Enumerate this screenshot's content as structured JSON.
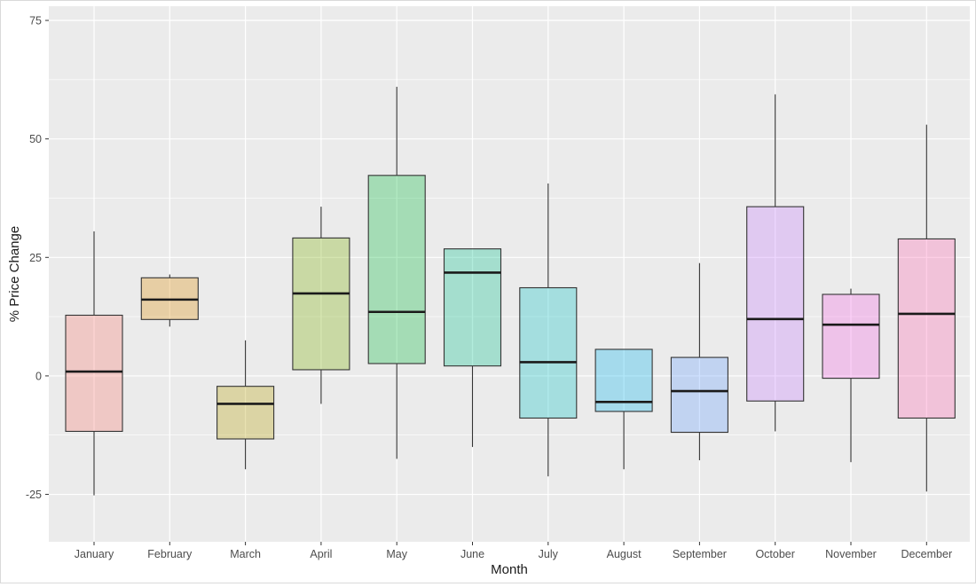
{
  "chart_data": {
    "type": "boxplot",
    "title": "",
    "xlabel": "Month",
    "ylabel": "% Price Change",
    "ylim": [
      -35,
      78
    ],
    "yticks": [
      75,
      50,
      25,
      0,
      -25
    ],
    "grid": true,
    "legend": "none",
    "categories": [
      "January",
      "February",
      "March",
      "April",
      "May",
      "June",
      "July",
      "August",
      "September",
      "October",
      "November",
      "December"
    ],
    "boxes": [
      {
        "min": -25.2,
        "q1": -11.7,
        "median": 0.9,
        "q3": 12.8,
        "max": 30.5,
        "color": "#F8766D"
      },
      {
        "min": 10.4,
        "q1": 11.9,
        "median": 16.1,
        "q3": 20.7,
        "max": 21.4,
        "color": "#DE8C00"
      },
      {
        "min": -19.7,
        "q1": -13.3,
        "median": -5.9,
        "q3": -2.2,
        "max": 7.5,
        "color": "#B79F00"
      },
      {
        "min": -5.9,
        "q1": 1.3,
        "median": 17.4,
        "q3": 29.1,
        "max": 35.7,
        "color": "#7CAE00"
      },
      {
        "min": -17.5,
        "q1": 2.6,
        "median": 13.5,
        "q3": 42.3,
        "max": 61.0,
        "color": "#00BA38"
      },
      {
        "min": -15.0,
        "q1": 2.1,
        "median": 21.8,
        "q3": 26.8,
        "max": 26.8,
        "color": "#00C08B"
      },
      {
        "min": -21.2,
        "q1": -8.9,
        "median": 2.9,
        "q3": 18.6,
        "max": 40.6,
        "color": "#00BFC4"
      },
      {
        "min": -19.7,
        "q1": -7.5,
        "median": -5.5,
        "q3": 5.6,
        "max": 5.6,
        "color": "#00B4F0"
      },
      {
        "min": -17.8,
        "q1": -11.9,
        "median": -3.2,
        "q3": 3.9,
        "max": 23.8,
        "color": "#619CFF"
      },
      {
        "min": -11.7,
        "q1": -5.3,
        "median": 12.0,
        "q3": 35.7,
        "max": 59.4,
        "color": "#C77CFF"
      },
      {
        "min": -18.2,
        "q1": -0.5,
        "median": 10.8,
        "q3": 17.2,
        "max": 18.4,
        "color": "#F564E3"
      },
      {
        "min": -24.4,
        "q1": -8.9,
        "median": 13.1,
        "q3": 28.9,
        "max": 53.0,
        "color": "#FF64B0"
      }
    ]
  }
}
